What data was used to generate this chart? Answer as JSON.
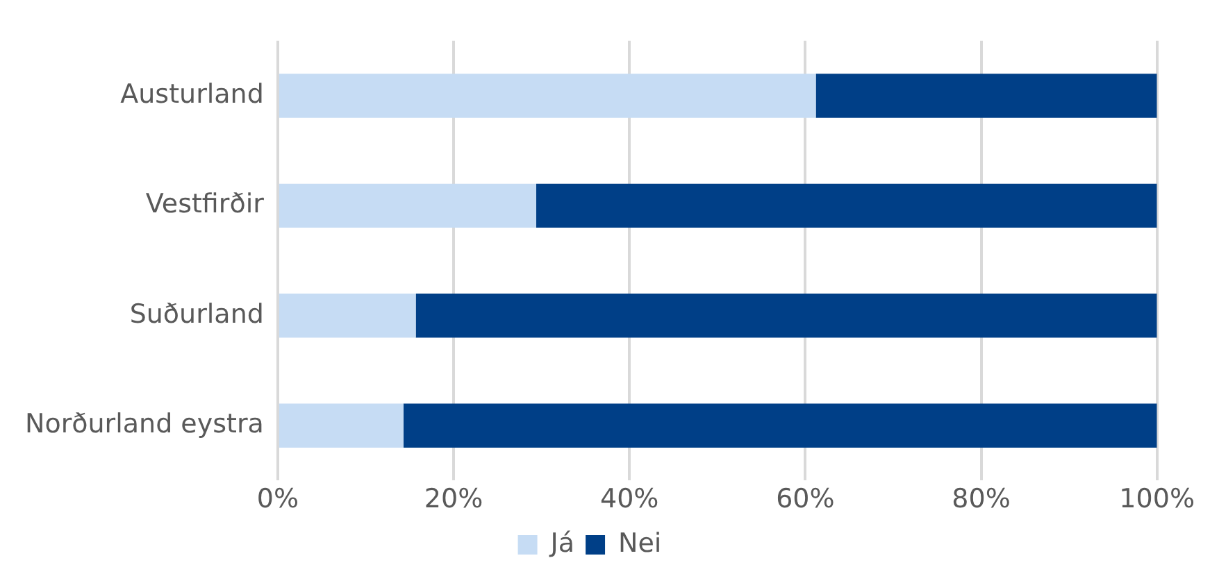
{
  "chart_data": {
    "type": "bar",
    "orientation": "horizontal",
    "stacked": true,
    "categories": [
      "Austurland",
      "Vestfirðir",
      "Suðurland",
      "Norðurland eystra"
    ],
    "series": [
      {
        "name": "Já",
        "color": "#c6dcf4",
        "values": [
          61.2,
          29.4,
          15.7,
          14.3
        ]
      },
      {
        "name": "Nei",
        "color": "#003f87",
        "values": [
          38.8,
          70.6,
          84.3,
          85.7
        ]
      }
    ],
    "xlim": [
      0,
      100
    ],
    "xticks": [
      {
        "value": 0,
        "label": "0%"
      },
      {
        "value": 20,
        "label": "20%"
      },
      {
        "value": 40,
        "label": "40%"
      },
      {
        "value": 60,
        "label": "60%"
      },
      {
        "value": 80,
        "label": "80%"
      },
      {
        "value": 100,
        "label": "100%"
      }
    ],
    "grid": "x",
    "legend": "bottom"
  }
}
